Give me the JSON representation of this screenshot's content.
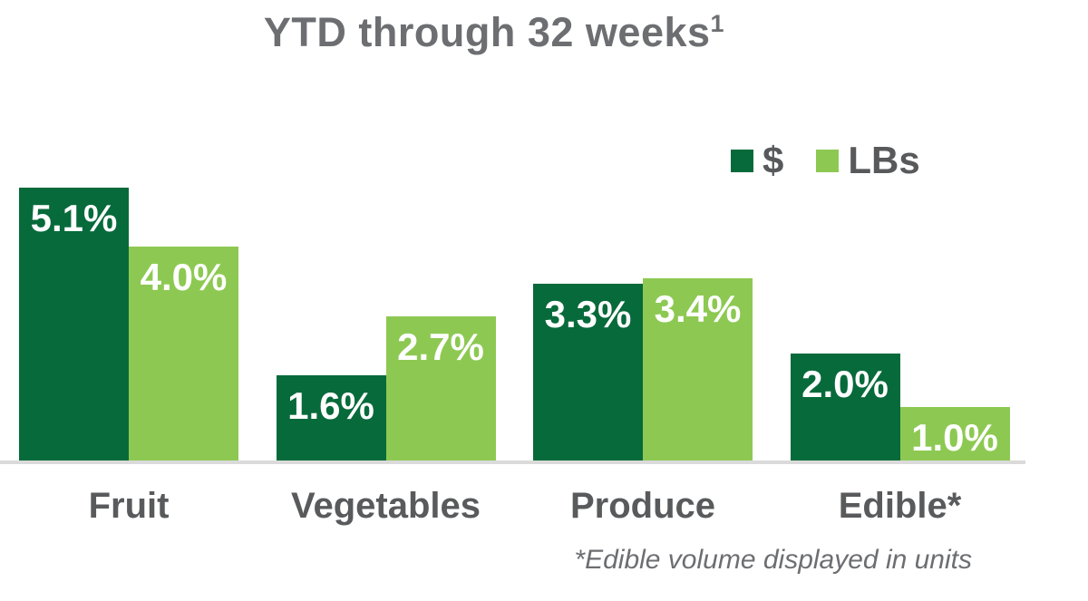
{
  "title": {
    "text": "YTD through 32 weeks",
    "superscript": "1"
  },
  "footnote": "*Edible volume displayed in units",
  "colors": {
    "dollars_green": "#076A3B",
    "lbs_green": "#8DC952",
    "title_gray": "#6D6E71",
    "label_gray": "#595A5C",
    "baseline_gray": "#DADADA",
    "bar_value_text": "#FFFFFF"
  },
  "chart_data": {
    "type": "bar",
    "title": "YTD through 32 weeks",
    "title_footnote_marker": "1",
    "categories": [
      "Fruit",
      "Vegetables",
      "Produce",
      "Edible*"
    ],
    "series": [
      {
        "name": "$",
        "color": "#076A3B",
        "values": [
          5.1,
          1.6,
          3.3,
          2.0
        ]
      },
      {
        "name": "LBs",
        "color": "#8DC952",
        "values": [
          4.0,
          2.7,
          3.4,
          1.0
        ]
      }
    ],
    "value_suffix": "%",
    "data_labels": "inside-top, white bold",
    "xlabel": "",
    "ylabel": "",
    "ylim": [
      0,
      5.3
    ],
    "grid": false,
    "y_axis_visible": false,
    "legend_position": "top-right",
    "annotation": "*Edible volume displayed in units"
  }
}
